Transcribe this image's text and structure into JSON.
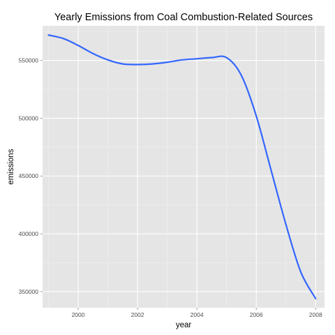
{
  "chart_data": {
    "type": "line",
    "title": "Yearly Emissions from Coal Combustion-Related Sources",
    "xlabel": "year",
    "ylabel": "emissions",
    "xlim": [
      1998.8,
      2008.3
    ],
    "ylim": [
      336000,
      580000
    ],
    "x_ticks": [
      2000,
      2002,
      2004,
      2006,
      2008
    ],
    "x_tick_labels": [
      "2000",
      "2002",
      "2004",
      "2006",
      "2008"
    ],
    "y_ticks": [
      350000,
      400000,
      450000,
      500000,
      550000
    ],
    "y_tick_labels": [
      "350000",
      "400000",
      "450000",
      "500000",
      "550000"
    ],
    "grid": true,
    "series": [
      {
        "color": "#3366ff",
        "x": [
          1999,
          1999.5,
          2000,
          2000.5,
          2001,
          2001.5,
          2002,
          2002.5,
          2003,
          2003.5,
          2004,
          2004.5,
          2005,
          2005.5,
          2006,
          2006.5,
          2007,
          2007.5,
          2008
        ],
        "y": [
          572000,
          569000,
          563000,
          556000,
          550500,
          547000,
          546500,
          547000,
          548500,
          550500,
          551500,
          552500,
          552500,
          537000,
          502000,
          455000,
          408000,
          367000,
          344000
        ]
      }
    ],
    "colors": {
      "panel": "#e5e5e5",
      "grid_major": "#ffffff",
      "grid_minor": "#f2f2f2",
      "line": "#3366ff"
    }
  }
}
